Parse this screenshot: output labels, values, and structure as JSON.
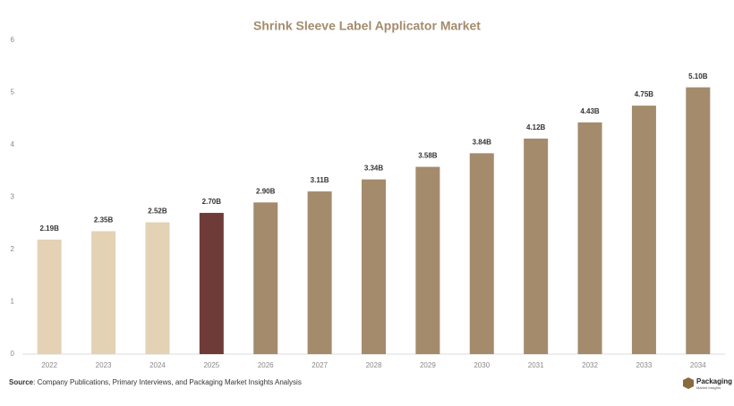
{
  "chart_data": {
    "type": "bar",
    "title": "Shrink Sleeve Label Applicator Market",
    "categories": [
      "2022",
      "2023",
      "2024",
      "2025",
      "2026",
      "2027",
      "2028",
      "2029",
      "2030",
      "2031",
      "2032",
      "2033",
      "2034"
    ],
    "values": [
      2.19,
      2.35,
      2.52,
      2.7,
      2.9,
      3.11,
      3.34,
      3.58,
      3.84,
      4.12,
      4.43,
      4.75,
      5.1
    ],
    "value_labels": [
      "2.19B",
      "2.35B",
      "2.52B",
      "2.70B",
      "2.90B",
      "3.11B",
      "3.34B",
      "3.58B",
      "3.84B",
      "4.12B",
      "4.43B",
      "4.75B",
      "5.10B"
    ],
    "colors": [
      "#e3d2b4",
      "#e3d2b4",
      "#e3d2b4",
      "#6f3b39",
      "#a48b6c",
      "#a48b6c",
      "#a48b6c",
      "#a48b6c",
      "#a48b6c",
      "#a48b6c",
      "#a48b6c",
      "#a48b6c",
      "#a48b6c"
    ],
    "ylim": [
      0,
      6
    ],
    "yticks": [
      0,
      1,
      2,
      3,
      4,
      5,
      6
    ],
    "grid": false
  },
  "footer": {
    "source_label": "Source",
    "source_text": ": Company Publications, Primary Interviews, and Packaging Market Insights Analysis",
    "logo_title": "Packaging",
    "logo_subtitle": "Market Insights"
  }
}
